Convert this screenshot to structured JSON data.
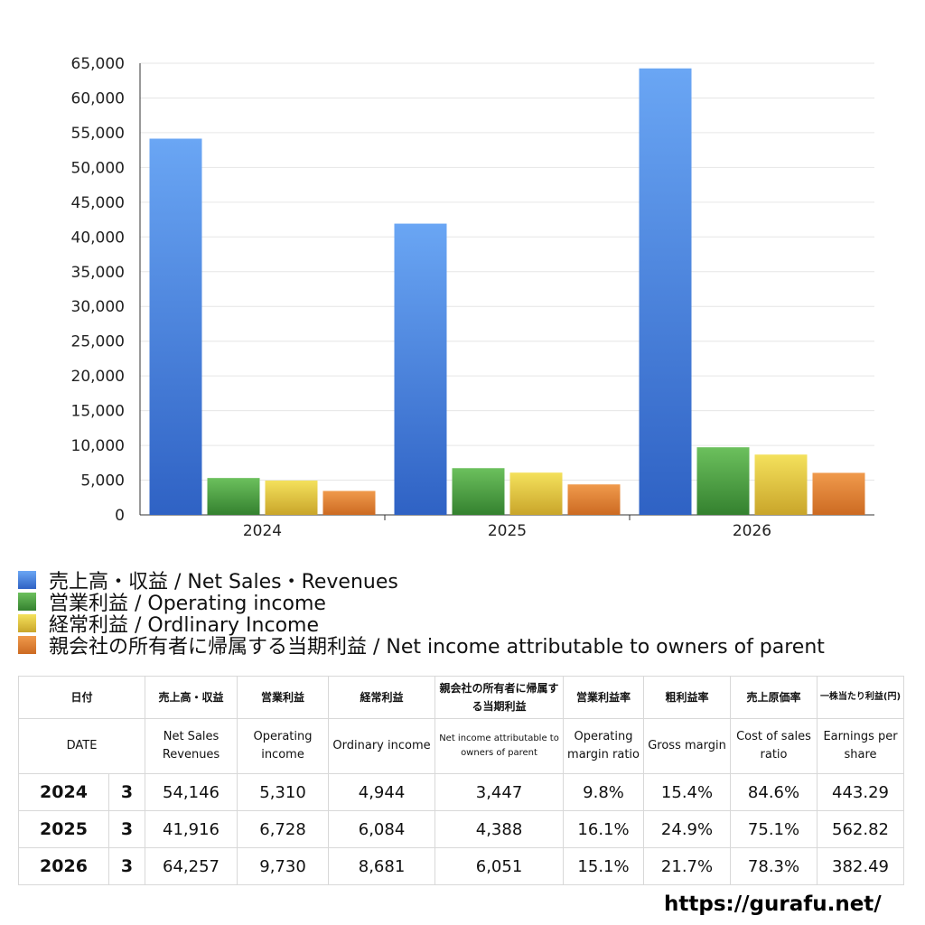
{
  "chart_data": {
    "type": "bar",
    "categories": [
      "2024",
      "2025",
      "2026"
    ],
    "series": [
      {
        "name": "売上高・収益 / Net Sales・Revenues",
        "values": [
          54146,
          41916,
          64257
        ],
        "color": "#3a77d6"
      },
      {
        "name": "営業利益 / Operating income",
        "values": [
          5310,
          6728,
          9730
        ],
        "color": "#3f9a3a"
      },
      {
        "name": "経常利益 / Ordlinary Income",
        "values": [
          4944,
          6084,
          8681
        ],
        "color": "#e2c431"
      },
      {
        "name": "親会社の所有者に帰属する当期利益 / Net income attributable to owners of parent",
        "values": [
          3447,
          4388,
          6051
        ],
        "color": "#e07d2e"
      }
    ],
    "ylim": [
      0,
      65000
    ],
    "yticks": [
      "0",
      "5,000",
      "10,000",
      "15,000",
      "20,000",
      "25,000",
      "30,000",
      "35,000",
      "40,000",
      "45,000",
      "50,000",
      "55,000",
      "60,000",
      "65,000"
    ],
    "grid": true,
    "legend_position": "bottom"
  },
  "table": {
    "headers_jp": [
      "日付",
      "売上高・収益",
      "営業利益",
      "経常利益",
      "親会社の所有者に帰属する当期利益",
      "営業利益率",
      "粗利益率",
      "売上原価率",
      "一株当たり利益(円)"
    ],
    "headers_en": [
      "DATE",
      "Net Sales Revenues",
      "Operating income",
      "Ordinary income",
      "Net income attributable to owners of parent",
      "Operating margin ratio",
      "Gross margin",
      "Cost of sales ratio",
      "Earnings per share"
    ],
    "rows": [
      [
        "2024",
        "3",
        "54,146",
        "5,310",
        "4,944",
        "3,447",
        "9.8%",
        "15.4%",
        "84.6%",
        "443.29"
      ],
      [
        "2025",
        "3",
        "41,916",
        "6,728",
        "6,084",
        "4,388",
        "16.1%",
        "24.9%",
        "75.1%",
        "562.82"
      ],
      [
        "2026",
        "3",
        "64,257",
        "9,730",
        "8,681",
        "6,051",
        "15.1%",
        "21.7%",
        "78.3%",
        "382.49"
      ]
    ]
  },
  "footer": {
    "site": "https://gurafu.net/"
  }
}
